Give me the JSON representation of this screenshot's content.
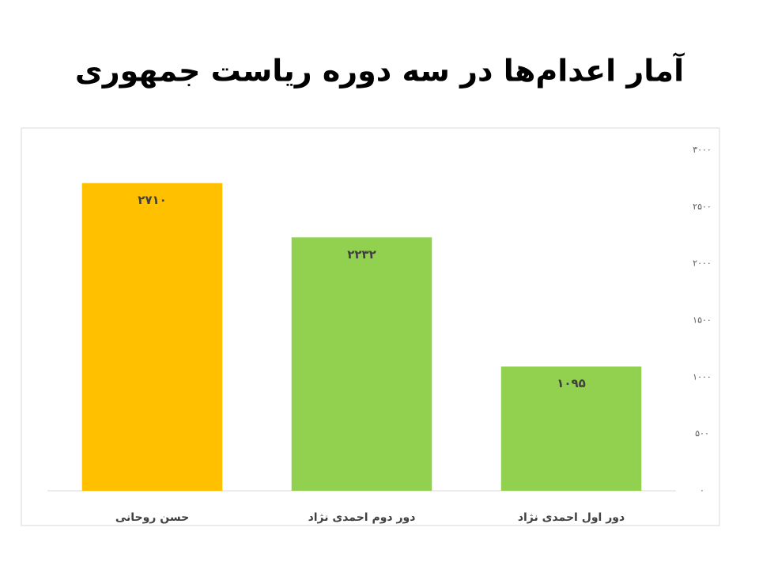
{
  "chart_data": {
    "type": "bar",
    "title": "آمار اعدام‌ها در سه دوره ریاست جمهوری",
    "categories": [
      "حسن روحانی",
      "دور دوم احمدی نژاد",
      "دور اول احمدی نژاد"
    ],
    "values": [
      2710,
      2232,
      1095
    ],
    "value_labels": [
      "۲۷۱۰",
      "۲۲۳۲",
      "۱۰۹۵"
    ],
    "colors": [
      "#ffc000",
      "#92d050",
      "#92d050"
    ],
    "ylim": [
      0,
      3000
    ],
    "yticks": [
      {
        "value": 0,
        "label": "۰"
      },
      {
        "value": 500,
        "label": "۵۰۰"
      },
      {
        "value": 1000,
        "label": "۱۰۰۰"
      },
      {
        "value": 1500,
        "label": "۱۵۰۰"
      },
      {
        "value": 2000,
        "label": "۲۰۰۰"
      },
      {
        "value": 2500,
        "label": "۲۵۰۰"
      },
      {
        "value": 3000,
        "label": "۳۰۰۰"
      }
    ],
    "y_axis_side": "right",
    "grid": false
  }
}
